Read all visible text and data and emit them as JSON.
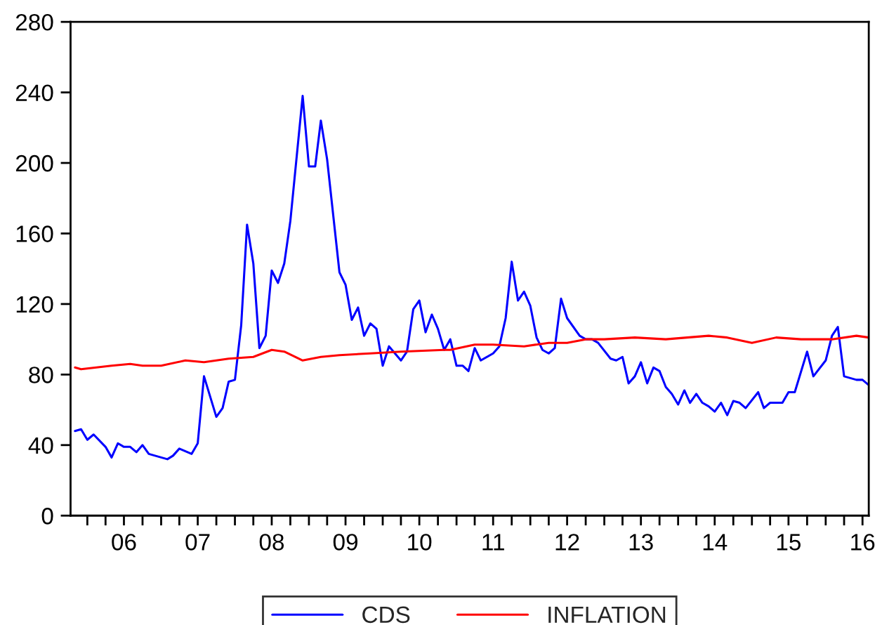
{
  "chart_data": {
    "type": "line",
    "xlim": [
      "2005-10-10",
      "2016-08-01"
    ],
    "ylim": [
      0,
      280
    ],
    "yticks": [
      0,
      40,
      80,
      120,
      160,
      200,
      240,
      280
    ],
    "xticks": [
      {
        "value": "2006-01-01",
        "label": null
      },
      {
        "value": "2006-04-01",
        "label": null
      },
      {
        "value": "2006-07-01",
        "label": "06"
      },
      {
        "value": "2006-10-01",
        "label": null
      },
      {
        "value": "2007-01-01",
        "label": null
      },
      {
        "value": "2007-04-01",
        "label": null
      },
      {
        "value": "2007-07-01",
        "label": "07"
      },
      {
        "value": "2007-10-01",
        "label": null
      },
      {
        "value": "2008-01-01",
        "label": null
      },
      {
        "value": "2008-04-01",
        "label": null
      },
      {
        "value": "2008-07-01",
        "label": "08"
      },
      {
        "value": "2008-10-01",
        "label": null
      },
      {
        "value": "2009-01-01",
        "label": null
      },
      {
        "value": "2009-04-01",
        "label": null
      },
      {
        "value": "2009-07-01",
        "label": "09"
      },
      {
        "value": "2009-10-01",
        "label": null
      },
      {
        "value": "2010-01-01",
        "label": null
      },
      {
        "value": "2010-04-01",
        "label": null
      },
      {
        "value": "2010-07-01",
        "label": "10"
      },
      {
        "value": "2010-10-01",
        "label": null
      },
      {
        "value": "2011-01-01",
        "label": null
      },
      {
        "value": "2011-04-01",
        "label": null
      },
      {
        "value": "2011-07-01",
        "label": "11"
      },
      {
        "value": "2011-10-01",
        "label": null
      },
      {
        "value": "2012-01-01",
        "label": null
      },
      {
        "value": "2012-04-01",
        "label": null
      },
      {
        "value": "2012-07-01",
        "label": "12"
      },
      {
        "value": "2012-10-01",
        "label": null
      },
      {
        "value": "2013-01-01",
        "label": null
      },
      {
        "value": "2013-04-01",
        "label": null
      },
      {
        "value": "2013-07-01",
        "label": "13"
      },
      {
        "value": "2013-10-01",
        "label": null
      },
      {
        "value": "2014-01-01",
        "label": null
      },
      {
        "value": "2014-04-01",
        "label": null
      },
      {
        "value": "2014-07-01",
        "label": "14"
      },
      {
        "value": "2014-10-01",
        "label": null
      },
      {
        "value": "2015-01-01",
        "label": null
      },
      {
        "value": "2015-04-01",
        "label": null
      },
      {
        "value": "2015-07-01",
        "label": "15"
      },
      {
        "value": "2015-10-01",
        "label": null
      },
      {
        "value": "2016-01-01",
        "label": null
      },
      {
        "value": "2016-04-01",
        "label": null
      },
      {
        "value": "2016-07-01",
        "label": "16"
      }
    ],
    "grid": false,
    "legend": "bottom",
    "line_style": "solid",
    "marker": "none",
    "series": [
      {
        "name": "CDS",
        "color": "#0000ff",
        "x": [
          "2005-11",
          "2005-12",
          "2006-01",
          "2006-02",
          "2006-04",
          "2006-05",
          "2006-06",
          "2006-07",
          "2006-08",
          "2006-09",
          "2006-10",
          "2006-11",
          "2007-01",
          "2007-02",
          "2007-03",
          "2007-04",
          "2007-06",
          "2007-07",
          "2007-08",
          "2007-10",
          "2007-11",
          "2007-12",
          "2008-01",
          "2008-02",
          "2008-03",
          "2008-04",
          "2008-05",
          "2008-06",
          "2008-07",
          "2008-08",
          "2008-09",
          "2008-10",
          "2008-12",
          "2009-01",
          "2009-02",
          "2009-03",
          "2009-04",
          "2009-06",
          "2009-07",
          "2009-08",
          "2009-09",
          "2009-10",
          "2009-11",
          "2009-12",
          "2010-01",
          "2010-02",
          "2010-04",
          "2010-05",
          "2010-06",
          "2010-07",
          "2010-08",
          "2010-09",
          "2010-10",
          "2010-11",
          "2010-12",
          "2011-01",
          "2011-02",
          "2011-03",
          "2011-04",
          "2011-05",
          "2011-07",
          "2011-08",
          "2011-09",
          "2011-10",
          "2011-11",
          "2011-12",
          "2012-01",
          "2012-02",
          "2012-03",
          "2012-04",
          "2012-05",
          "2012-06",
          "2012-07",
          "2012-09",
          "2012-10",
          "2012-11",
          "2012-12",
          "2013-02",
          "2013-03",
          "2013-04",
          "2013-05",
          "2013-06",
          "2013-07",
          "2013-08",
          "2013-09",
          "2013-10",
          "2013-11",
          "2013-12",
          "2014-01",
          "2014-02",
          "2014-03",
          "2014-04",
          "2014-05",
          "2014-06",
          "2014-07",
          "2014-08",
          "2014-09",
          "2014-10",
          "2014-11",
          "2014-12",
          "2015-02",
          "2015-03",
          "2015-04",
          "2015-06",
          "2015-07",
          "2015-08",
          "2015-10",
          "2015-11",
          "2016-01",
          "2016-02",
          "2016-03",
          "2016-04",
          "2016-06",
          "2016-07",
          "2016-08"
        ],
        "values": [
          48,
          49,
          43,
          46,
          39,
          33,
          41,
          39,
          39,
          36,
          40,
          35,
          33,
          32,
          34,
          38,
          35,
          41,
          79,
          56,
          61,
          76,
          77,
          108,
          165,
          143,
          95,
          102,
          139,
          132,
          143,
          167,
          238,
          198,
          198,
          224,
          202,
          138,
          131,
          111,
          118,
          102,
          109,
          106,
          85,
          96,
          88,
          93,
          117,
          122,
          104,
          114,
          106,
          94,
          100,
          85,
          85,
          82,
          95,
          88,
          92,
          96,
          112,
          144,
          122,
          127,
          119,
          101,
          94,
          92,
          95,
          123,
          112,
          102,
          100,
          100,
          98,
          89,
          88,
          90,
          75,
          79,
          87,
          75,
          84,
          82,
          73,
          69,
          63,
          71,
          64,
          69,
          64,
          62,
          59,
          64,
          57,
          65,
          64,
          61,
          70,
          61,
          64,
          64,
          70,
          70,
          93,
          79,
          88,
          102,
          107,
          79,
          77,
          77,
          74
        ]
      },
      {
        "name": "INFLATION",
        "color": "#ff0000",
        "x": [
          "2005-11",
          "2005-12",
          "2006-05",
          "2006-08",
          "2006-10",
          "2007-01",
          "2007-05",
          "2007-08",
          "2007-12",
          "2008-04",
          "2008-07",
          "2008-09",
          "2008-12",
          "2009-03",
          "2009-06",
          "2009-11",
          "2010-04",
          "2010-11",
          "2010-12",
          "2011-04",
          "2011-07",
          "2011-12",
          "2012-04",
          "2012-07",
          "2012-10",
          "2013-01",
          "2013-06",
          "2013-11",
          "2014-06",
          "2014-09",
          "2015-01",
          "2015-05",
          "2015-09",
          "2016-02",
          "2016-06",
          "2016-08"
        ],
        "values": [
          84,
          83,
          85,
          86,
          85,
          85,
          88,
          87,
          89,
          90,
          94,
          93,
          88,
          90,
          91,
          92,
          93,
          94,
          94,
          97,
          97,
          96,
          98,
          98,
          100,
          100,
          101,
          100,
          102,
          101,
          98,
          101,
          100,
          100,
          102,
          101
        ]
      }
    ]
  }
}
